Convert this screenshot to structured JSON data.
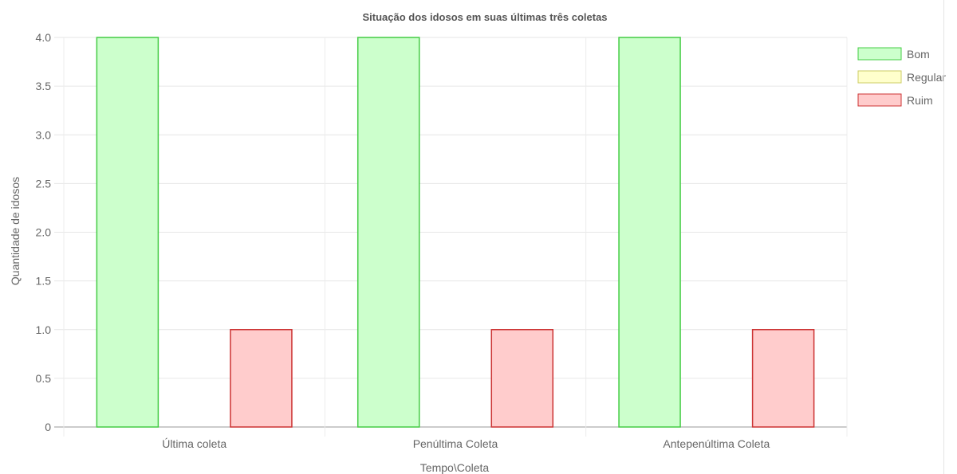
{
  "chart_data": {
    "type": "bar",
    "title": "Situação dos idosos em suas últimas três coletas",
    "xlabel": "Tempo\\Coleta",
    "ylabel": "Quantidade de idosos",
    "categories": [
      "Última coleta",
      "Penúltima Coleta",
      "Antepenúltima Coleta"
    ],
    "y_ticks": [
      "0",
      "0.5",
      "1.0",
      "1.5",
      "2.0",
      "2.5",
      "3.0",
      "3.5",
      "4.0"
    ],
    "ylim": [
      0,
      4
    ],
    "grid": true,
    "legend_position": "right",
    "series": [
      {
        "name": "Bom",
        "values": [
          4,
          4,
          4
        ],
        "fill": "#ccffcc",
        "stroke": "#44cc44"
      },
      {
        "name": "Regular",
        "values": [
          0,
          0,
          0
        ],
        "fill": "#ffffcc",
        "stroke": "#cccc66"
      },
      {
        "name": "Ruim",
        "values": [
          1,
          1,
          1
        ],
        "fill": "#ffcccc",
        "stroke": "#cc3333"
      }
    ]
  }
}
